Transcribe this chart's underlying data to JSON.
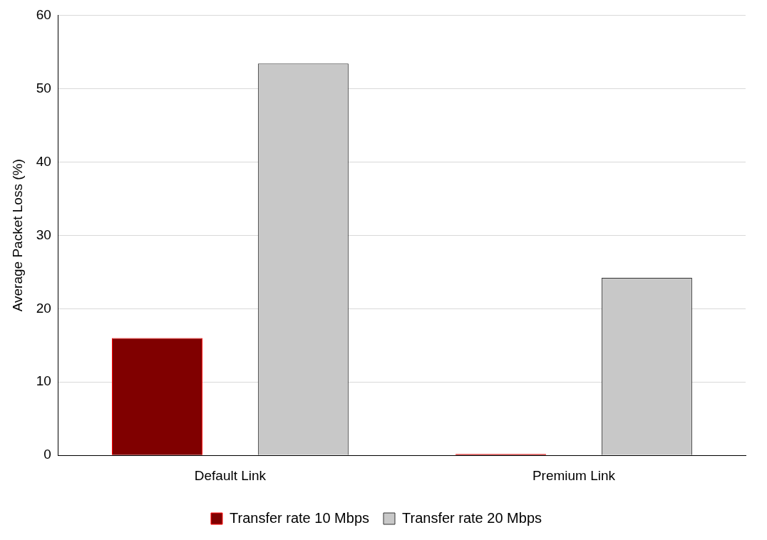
{
  "chart_data": {
    "type": "bar",
    "ylabel": "Average Packet Loss (%)",
    "categories": [
      "Default Link",
      "Premium Link"
    ],
    "series": [
      {
        "name": "Transfer rate 10 Mbps",
        "color": "#800000",
        "values": [
          16,
          0.2
        ]
      },
      {
        "name": "Transfer rate 20 Mbps",
        "color": "#c8c8c8",
        "values": [
          53.4,
          24.2
        ]
      }
    ],
    "ylim": [
      0,
      60
    ],
    "yticks": [
      0,
      10,
      20,
      30,
      40,
      50,
      60
    ],
    "grid": "y",
    "legend": "bottom"
  }
}
